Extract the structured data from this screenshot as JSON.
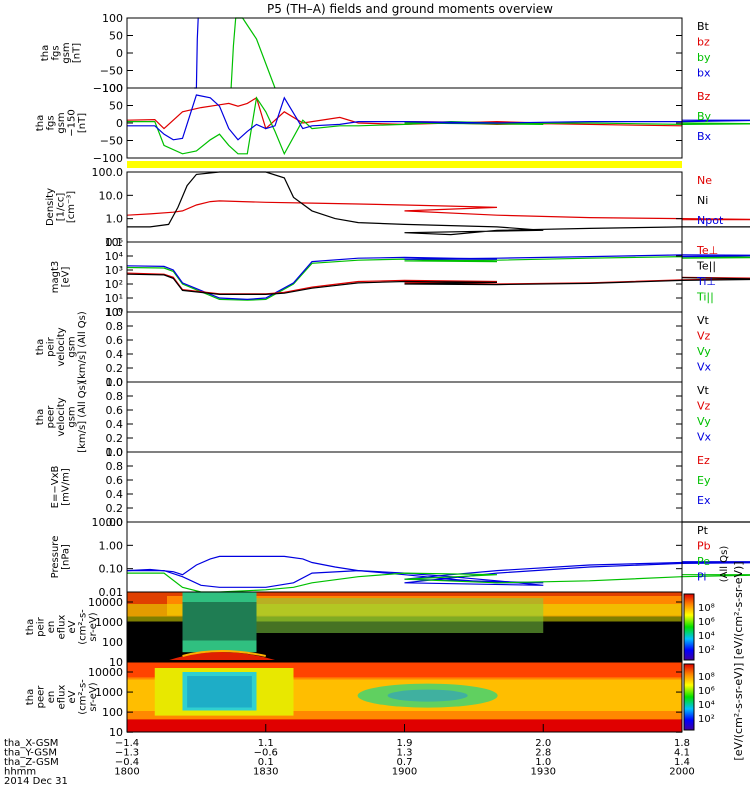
{
  "title": "P5 (TH–A) fields and ground moments overview",
  "colors": {
    "red": "#e00000",
    "green": "#00c000",
    "blue": "#0000e0",
    "black": "#000000",
    "yellow": "#ffff00"
  },
  "chart_data": [
    {
      "type": "line",
      "panel": "fgs-gsm",
      "ylabel": [
        "tha",
        "fgs",
        "gsm",
        "[nT]"
      ],
      "yticks": [
        "100",
        "50",
        "0",
        "−50",
        "−100"
      ],
      "ylim": [
        -100,
        100
      ],
      "legend": [
        "Bt",
        "bz",
        "by",
        "bx"
      ],
      "legend_colors": [
        "black",
        "red",
        "green",
        "blue"
      ],
      "series": [
        {
          "name": "bx",
          "color": "blue",
          "x": [
            1814.5,
            1815,
            1815.2,
            1815.4,
            1815.5
          ],
          "y": [
            -100,
            -100,
            40,
            100,
            100
          ]
        },
        {
          "name": "by",
          "color": "green",
          "x": [
            1822.5,
            1823,
            1823.5,
            1825,
            1828,
            1832
          ],
          "y": [
            -100,
            20,
            100,
            100,
            40,
            -100
          ]
        }
      ]
    },
    {
      "type": "line",
      "panel": "fgs-gsm-zoom",
      "ylabel": [
        "tha",
        "fgs",
        "gsm",
        "−150",
        "[nT]"
      ],
      "yticks": [
        "100",
        "50",
        "0",
        "−50",
        "−100"
      ],
      "ylim": [
        -125,
        125
      ],
      "legend": [
        "Bz",
        "By",
        "Bx"
      ],
      "legend_colors": [
        "red",
        "green",
        "blue"
      ],
      "series": [
        {
          "name": "Bz",
          "color": "red",
          "x": [
            1800,
            1806,
            1808,
            1812,
            1816,
            1820,
            1822,
            1824,
            1826,
            1828,
            1830,
            1834,
            1838,
            1840,
            1846,
            1850,
            1860,
            1870,
            1880,
            1890,
            1900,
            1910,
            1920,
            1930,
            1940,
            1950,
            1960,
            2000
          ],
          "y": [
            10,
            12,
            -20,
            40,
            55,
            65,
            70,
            60,
            70,
            90,
            -20,
            40,
            0,
            5,
            20,
            0,
            -5,
            0,
            5,
            0,
            5,
            0,
            -5,
            -2,
            -5,
            -8,
            -10,
            -10
          ]
        },
        {
          "name": "By",
          "color": "green",
          "x": [
            1800,
            1806,
            1808,
            1812,
            1815,
            1818,
            1820,
            1822,
            1824,
            1826,
            1828,
            1830,
            1832,
            1834,
            1838,
            1840,
            1846,
            1850,
            1860,
            1870,
            1880,
            1890,
            1900,
            1920,
            1940,
            1960,
            1980,
            2000
          ],
          "y": [
            5,
            5,
            -80,
            -110,
            -100,
            -60,
            -40,
            -80,
            -110,
            -110,
            90,
            40,
            -30,
            -110,
            10,
            -20,
            -10,
            -10,
            -5,
            5,
            0,
            -5,
            0,
            -2,
            0,
            -5,
            -3,
            0
          ]
        },
        {
          "name": "Bx",
          "color": "blue",
          "x": [
            1800,
            1806,
            1808,
            1810,
            1812,
            1815,
            1818,
            1820,
            1822,
            1824,
            1826,
            1828,
            1830,
            1832,
            1834,
            1838,
            1840,
            1846,
            1850,
            1860,
            1870,
            1880,
            1900,
            1920,
            1940,
            1960,
            1980,
            2000
          ],
          "y": [
            -10,
            -10,
            -40,
            -60,
            -55,
            100,
            90,
            60,
            -20,
            -60,
            -30,
            -5,
            -20,
            -10,
            90,
            -20,
            -10,
            -5,
            5,
            5,
            0,
            0,
            5,
            0,
            5,
            5,
            10,
            10
          ]
        }
      ]
    },
    {
      "type": "line",
      "panel": "density",
      "ylabel": [
        "Density",
        "[1/cc]",
        "[cm⁻³]"
      ],
      "yticks": [
        "100.0",
        "10.0",
        "1.0",
        "0.1"
      ],
      "ylim": [
        0.05,
        200
      ],
      "log": true,
      "legend": [
        "Ne",
        "Ni",
        "Npot"
      ],
      "legend_colors": [
        "red",
        "black",
        "blue"
      ],
      "series": [
        {
          "name": "Ne",
          "color": "red",
          "x": [
            1800,
            1805,
            1810,
            1812,
            1815,
            1818,
            1820,
            1825,
            1830,
            1840,
            1850,
            1860,
            1870,
            1880,
            1900,
            1920,
            1940,
            1960,
            1980,
            2000
          ],
          "y": [
            1.2,
            1.4,
            1.7,
            2.0,
            4.0,
            6.0,
            6.5,
            6.0,
            5.5,
            5.0,
            4.5,
            4.0,
            3.5,
            3.0,
            2.0,
            1.2,
            0.9,
            0.8,
            0.7,
            0.7
          ]
        },
        {
          "name": "Ni",
          "color": "black",
          "x": [
            1800,
            1805,
            1809,
            1811,
            1813,
            1815,
            1820,
            1825,
            1830,
            1834,
            1836,
            1840,
            1845,
            1850,
            1860,
            1870,
            1880,
            1890,
            1900,
            1910,
            1920,
            1940,
            1960,
            1980,
            2000
          ],
          "y": [
            0.3,
            0.3,
            0.4,
            3.0,
            40,
            150,
            200,
            200,
            200,
            100,
            10,
            2.0,
            0.8,
            0.5,
            0.4,
            0.35,
            0.3,
            0.2,
            0.15,
            0.12,
            0.2,
            0.25,
            0.3,
            0.3,
            0.3
          ]
        }
      ]
    },
    {
      "type": "line",
      "panel": "temperature",
      "ylabel": [
        "magt3",
        "[eV]"
      ],
      "yticks": [
        "10⁵",
        "10⁴",
        "10³",
        "10²",
        "10¹",
        "10⁰"
      ],
      "ylim": [
        1,
        100000
      ],
      "log": true,
      "legend": [
        "Te⊥",
        "Te||",
        "Ti⊥",
        "Ti||"
      ],
      "legend_colors": [
        "red",
        "black",
        "blue",
        "green"
      ],
      "series": [
        {
          "name": "Ti||",
          "color": "green",
          "x": [
            1800,
            1808,
            1810,
            1812,
            1820,
            1826,
            1830,
            1836,
            1840,
            1850,
            1860,
            1880,
            1900,
            1920,
            1940,
            1960,
            1980,
            2000
          ],
          "y": [
            1500,
            1400,
            800,
            100,
            8,
            7,
            8,
            100,
            3000,
            5000,
            6000,
            4000,
            4500,
            5000,
            7000,
            9000,
            8000,
            7000
          ]
        },
        {
          "name": "Ti⊥",
          "color": "blue",
          "x": [
            1800,
            1808,
            1810,
            1812,
            1820,
            1826,
            1830,
            1836,
            1840,
            1850,
            1860,
            1880,
            1900,
            1920,
            1940,
            1960,
            1980,
            2000
          ],
          "y": [
            2000,
            1800,
            1000,
            120,
            10,
            8,
            10,
            120,
            4000,
            7000,
            8000,
            6000,
            6000,
            7000,
            9000,
            12000,
            11000,
            9000
          ]
        },
        {
          "name": "Te⊥",
          "color": "red",
          "x": [
            1800,
            1808,
            1810,
            1812,
            1820,
            1830,
            1834,
            1840,
            1850,
            1860,
            1880,
            1900,
            1920,
            1940,
            1960,
            1980,
            2000
          ],
          "y": [
            600,
            500,
            300,
            40,
            20,
            20,
            25,
            60,
            150,
            180,
            150,
            120,
            100,
            120,
            200,
            250,
            300
          ]
        },
        {
          "name": "Te||",
          "color": "black",
          "x": [
            1800,
            1808,
            1810,
            1812,
            1820,
            1830,
            1834,
            1840,
            1850,
            1860,
            1880,
            1900,
            1920,
            1940,
            1960,
            1980,
            2000
          ],
          "y": [
            500,
            450,
            250,
            35,
            18,
            18,
            22,
            50,
            120,
            150,
            130,
            100,
            90,
            110,
            180,
            220,
            280
          ]
        }
      ]
    },
    {
      "type": "line",
      "panel": "peir-velocity",
      "ylabel": [
        "tha",
        "peir",
        "velocity",
        "gsm",
        "[km/s] (All Qs)"
      ],
      "yticks": [
        "1.0",
        "0.8",
        "0.6",
        "0.4",
        "0.2",
        "0.0"
      ],
      "ylim": [
        0,
        1
      ],
      "legend": [
        "Vt",
        "Vz",
        "Vy",
        "Vx"
      ],
      "legend_colors": [
        "black",
        "red",
        "green",
        "blue"
      ],
      "series": []
    },
    {
      "type": "line",
      "panel": "peer-velocity",
      "ylabel": [
        "tha",
        "peer",
        "velocity",
        "gsm",
        "[km/s] (All Qs)"
      ],
      "yticks": [
        "1.0",
        "0.8",
        "0.6",
        "0.4",
        "0.2",
        "0.0"
      ],
      "ylim": [
        0,
        1
      ],
      "legend": [
        "Vt",
        "Vz",
        "Vy",
        "Vx"
      ],
      "legend_colors": [
        "black",
        "red",
        "green",
        "blue"
      ],
      "series": []
    },
    {
      "type": "line",
      "panel": "e-field",
      "ylabel": [
        "E=−VxB",
        "[mV/m]"
      ],
      "yticks": [
        "1.0",
        "0.8",
        "0.6",
        "0.4",
        "0.2",
        "0.0"
      ],
      "ylim": [
        0,
        1
      ],
      "legend": [
        "Ez",
        "Ey",
        "Ex"
      ],
      "legend_colors": [
        "red",
        "green",
        "blue"
      ],
      "series": [
        {
          "name": "Ex",
          "color": "black",
          "x": [
            1985,
            1992,
            2000
          ],
          "y": [
            0.0,
            -0.01,
            -0.03
          ]
        }
      ]
    },
    {
      "type": "line",
      "panel": "pressure",
      "ylabel": [
        "Pressure",
        "[nPa]"
      ],
      "yticks": [
        "10.00",
        "1.00",
        "0.10",
        "0.01"
      ],
      "ylim": [
        0.007,
        20
      ],
      "log": true,
      "legend": [
        "Pt",
        "Pb",
        "Pe",
        "Pi"
      ],
      "legend_colors": [
        "black",
        "red",
        "green",
        "blue"
      ],
      "legend_note": "(All Qs)",
      "series": [
        {
          "name": "Pb",
          "color": "blue",
          "x": [
            1800,
            1805,
            1810,
            1812,
            1815,
            1818,
            1820,
            1825,
            1830,
            1834,
            1838,
            1840,
            1845,
            1850,
            1860,
            1870,
            1880,
            1890,
            1900,
            1910,
            1920,
            1940,
            1960,
            1980,
            2000
          ],
          "y": [
            0.08,
            0.09,
            0.07,
            0.05,
            0.15,
            0.3,
            0.4,
            0.4,
            0.4,
            0.4,
            0.3,
            0.2,
            0.12,
            0.08,
            0.05,
            0.03,
            0.02,
            0.02,
            0.03,
            0.05,
            0.08,
            0.15,
            0.2,
            0.22,
            0.22
          ]
        },
        {
          "name": "Pi",
          "color": "blue",
          "x": [
            1800,
            1808,
            1812,
            1816,
            1820,
            1830,
            1836,
            1840,
            1850,
            1860,
            1870,
            1880,
            1890,
            1900,
            1920,
            1940,
            1960,
            1980,
            2000
          ],
          "y": [
            0.08,
            0.08,
            0.04,
            0.015,
            0.012,
            0.012,
            0.02,
            0.06,
            0.08,
            0.06,
            0.04,
            0.025,
            0.015,
            0.02,
            0.06,
            0.12,
            0.18,
            0.2,
            0.18
          ]
        },
        {
          "name": "Pe",
          "color": "green",
          "x": [
            1800,
            1808,
            1812,
            1816,
            1820,
            1830,
            1836,
            1840,
            1850,
            1860,
            1880,
            1900,
            1920,
            1940,
            1960,
            1980,
            2000
          ],
          "y": [
            0.06,
            0.06,
            0.012,
            0.007,
            0.007,
            0.009,
            0.012,
            0.02,
            0.04,
            0.06,
            0.05,
            0.03,
            0.02,
            0.025,
            0.04,
            0.05,
            0.05
          ]
        }
      ]
    },
    {
      "type": "heatmap",
      "panel": "peir-en-eflux",
      "ylabel": [
        "tha",
        "peir",
        "en",
        "eflux",
        "eV",
        "(cm²-s-",
        "sr-eV)"
      ],
      "yticks": [
        "10000",
        "1000",
        "100",
        "10"
      ],
      "ylim": [
        5,
        25000
      ],
      "log": true
    },
    {
      "type": "heatmap",
      "panel": "peer-en-eflux",
      "ylabel": [
        "tha",
        "peer",
        "en",
        "eflux",
        "eV",
        "(cm²-s-",
        "sr-eV)"
      ],
      "yticks": [
        "10000",
        "1000",
        "100",
        "10"
      ],
      "ylim": [
        5,
        25000
      ],
      "log": true
    }
  ],
  "colorbar": {
    "ticks_upper": [
      "10⁸",
      "10⁶",
      "10⁴",
      "10²"
    ],
    "ticks_lower": [
      "10⁸",
      "10⁶",
      "10⁴",
      "10²"
    ],
    "label": "[eV/(cm²-s-sr-eV)]  [eV/(cm²-s-sr-eV)]"
  },
  "xaxis": {
    "rows": [
      {
        "label": "tha_X-GSM",
        "values": [
          "−1.4",
          "1.1",
          "1.9",
          "2.0",
          "1.8"
        ]
      },
      {
        "label": "tha_Y-GSM",
        "values": [
          "−1.3",
          "−0.6",
          "1.3",
          "2.8",
          "4.1"
        ]
      },
      {
        "label": "tha_Z-GSM",
        "values": [
          "−0.4",
          "0.1",
          "0.7",
          "1.0",
          "1.4"
        ]
      },
      {
        "label": "hhmm",
        "values": [
          "1800",
          "1830",
          "1900",
          "1930",
          "2000"
        ]
      }
    ],
    "date": "2014 Dec 31",
    "tick_minutes": [
      1800,
      1830,
      1860,
      1890,
      1920
    ]
  }
}
